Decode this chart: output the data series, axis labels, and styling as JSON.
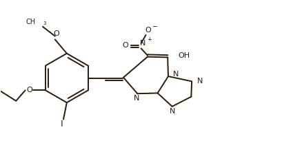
{
  "background_color": "#ffffff",
  "line_color": "#2a1a0a",
  "line_width": 1.4,
  "figsize": [
    4.09,
    2.27
  ],
  "dpi": 100,
  "xlim": [
    0,
    10
  ],
  "ylim": [
    0,
    5.5
  ]
}
